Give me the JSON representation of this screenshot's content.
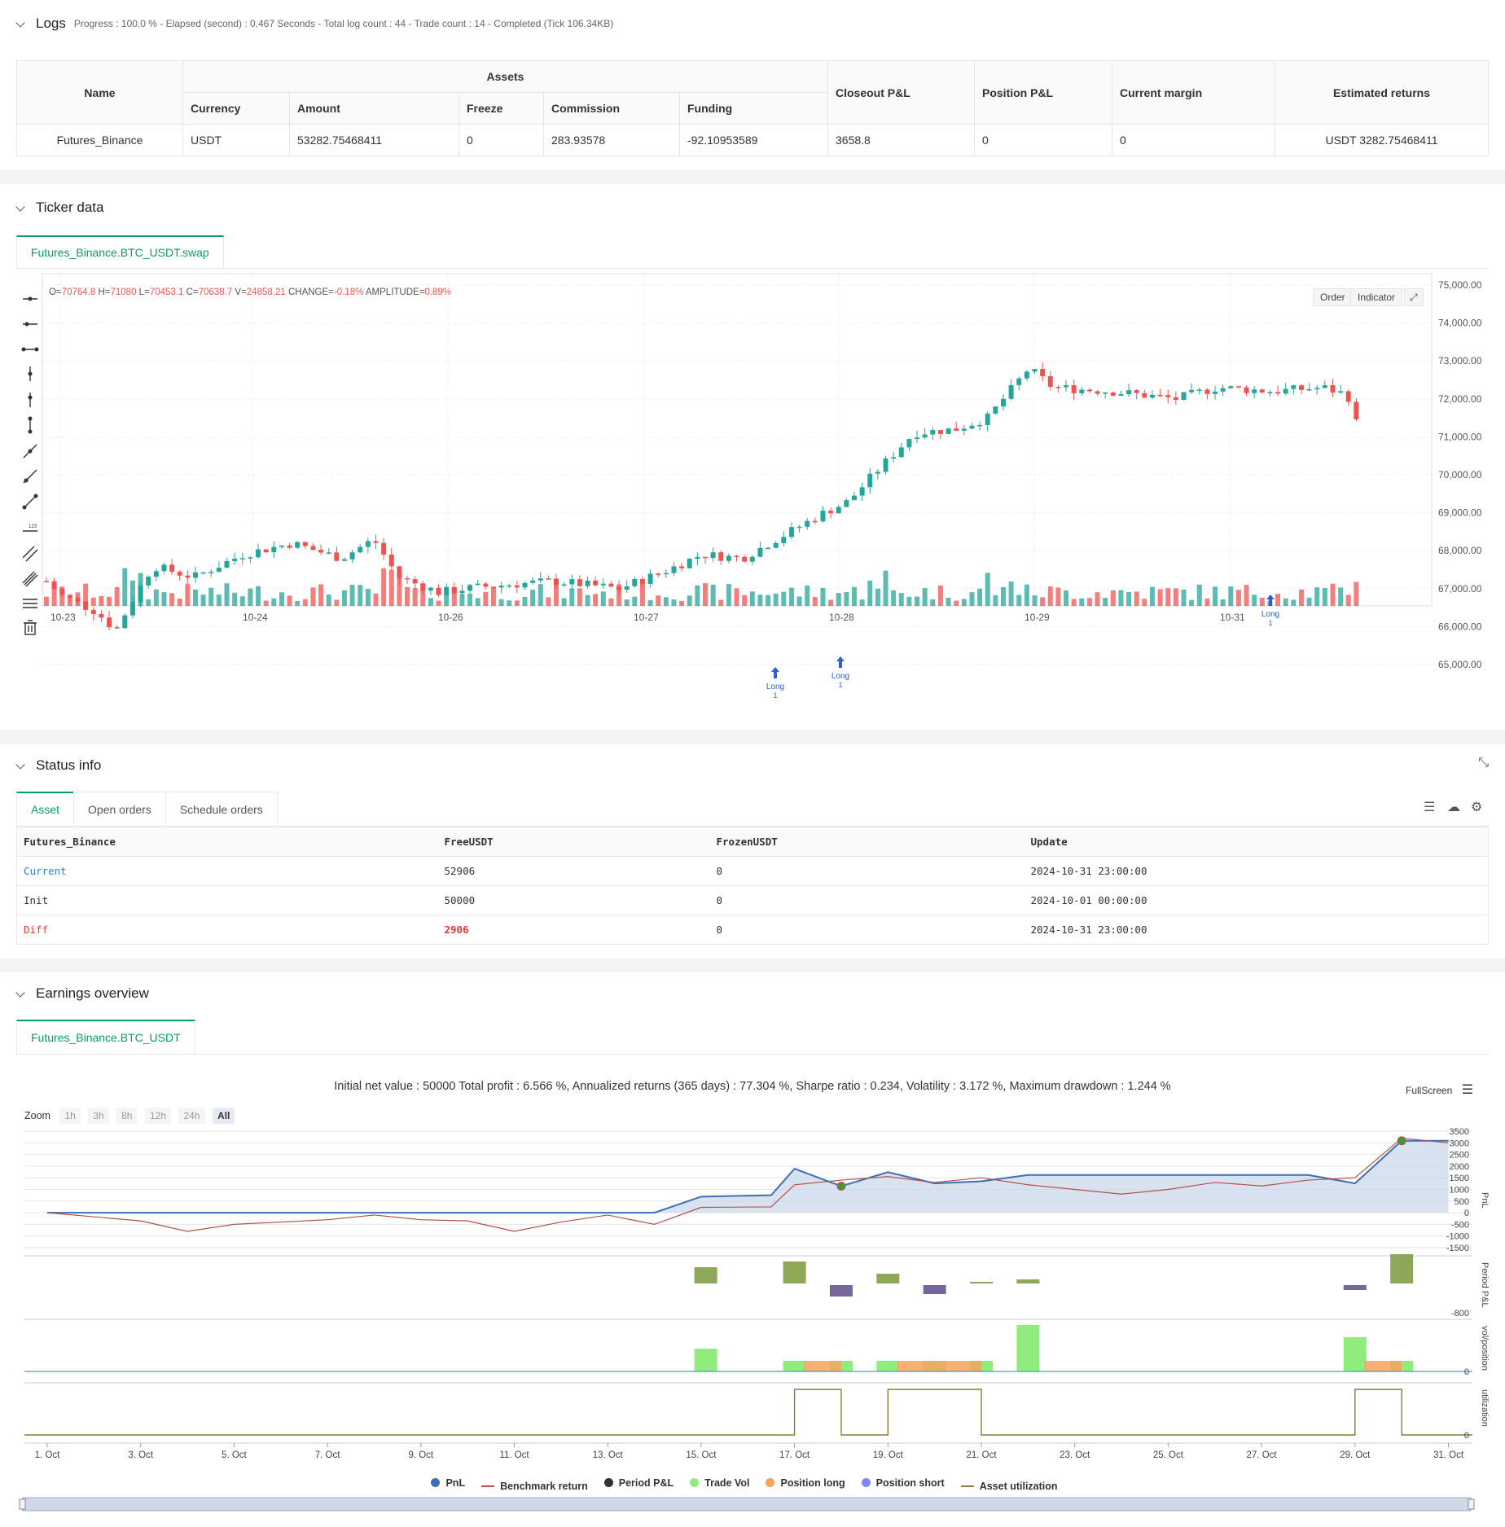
{
  "logs": {
    "title": "Logs",
    "meta": "Progress : 100.0 % - Elapsed (second) : 0.467  Seconds - Total log count : 44 - Trade count : 14 - Completed (Tick 106.34KB)",
    "headers": {
      "name": "Name",
      "assets": "Assets",
      "currency": "Currency",
      "amount": "Amount",
      "freeze": "Freeze",
      "commission": "Commission",
      "funding": "Funding",
      "closeout": "Closeout P&L",
      "position": "Position P&L",
      "margin": "Current margin",
      "returns": "Estimated returns"
    },
    "row": {
      "name": "Futures_Binance",
      "currency": "USDT",
      "amount": "53282.75468411",
      "freeze": "0",
      "commission": "283.93578",
      "funding": "-92.10953589",
      "closeout": "3658.8",
      "position": "0",
      "margin": "0",
      "returns": "USDT 3282.75468411"
    }
  },
  "ticker": {
    "title": "Ticker data",
    "tab": "Futures_Binance.BTC_USDT.swap",
    "ohlc": {
      "o_label": "O=",
      "o": "70764.8",
      "h_label": "H=",
      "h": "71080",
      "l_label": "L=",
      "l": "70453.1",
      "c_label": "C=",
      "c": "70638.7",
      "v_label": "V=",
      "v": "24858.21",
      "change_label": "CHANGE=",
      "change": "-0.18%",
      "amp_label": "AMPLITUDE=",
      "amp": "0.89%"
    },
    "buttons": {
      "order": "Order",
      "indicator": "Indicator"
    },
    "y_ticks": [
      "75,000.00",
      "74,000.00",
      "73,000.00",
      "72,000.00",
      "71,000.00",
      "70,000.00",
      "69,000.00",
      "68,000.00",
      "67,000.00",
      "66,000.00",
      "65,000.00"
    ],
    "x_ticks": [
      "10-23",
      "10-24",
      "10-26",
      "10-27",
      "10-28",
      "10-29",
      "10-31"
    ],
    "markers": [
      {
        "label": "Long",
        "qty": "1"
      },
      {
        "label": "Long",
        "qty": "1"
      },
      {
        "label": "Long",
        "qty": "1"
      }
    ],
    "colors": {
      "up": "#26a69a",
      "down": "#ef5350"
    }
  },
  "status": {
    "title": "Status info",
    "tabs": [
      "Asset",
      "Open orders",
      "Schedule orders"
    ],
    "headers": [
      "Futures_Binance",
      "FreeUSDT",
      "FrozenUSDT",
      "Update"
    ],
    "rows": [
      {
        "label": "Current",
        "free": "52906",
        "frozen": "0",
        "update": "2024-10-31 23:00:00"
      },
      {
        "label": "Init",
        "free": "50000",
        "frozen": "0",
        "update": "2024-10-01 00:00:00"
      },
      {
        "label": "Diff",
        "free": "2906",
        "frozen": "0",
        "update": "2024-10-31 23:00:00"
      }
    ]
  },
  "earnings": {
    "title": "Earnings overview",
    "tab": "Futures_Binance.BTC_USDT",
    "summary": "Initial net value : 50000  Total profit : 6.566 %, Annualized returns (365 days) : 77.304 %, Sharpe ratio : 0.234, Volatility : 3.172 %, Maximum drawdown : 1.244 %",
    "fullscreen": "FullScreen",
    "zoom_label": "Zoom",
    "zoom_options": [
      "1h",
      "3h",
      "8h",
      "12h",
      "24h",
      "All"
    ],
    "pnl_ticks": [
      "3500",
      "3000",
      "2500",
      "2000",
      "1500",
      "1000",
      "500",
      "0",
      "-500",
      "-1000",
      "-1500"
    ],
    "pnl_axis": "PnL",
    "period_axis": "Period P&L",
    "period_tick": "-800",
    "vol_axis": "vol/position",
    "vol_tick": "0",
    "util_axis": "utilization",
    "util_tick": "0",
    "x_ticks": [
      "1. Oct",
      "3. Oct",
      "5. Oct",
      "7. Oct",
      "9. Oct",
      "11. Oct",
      "13. Oct",
      "15. Oct",
      "17. Oct",
      "19. Oct",
      "21. Oct",
      "23. Oct",
      "25. Oct",
      "27. Oct",
      "29. Oct",
      "31. Oct"
    ],
    "legend": [
      {
        "label": "PnL",
        "color": "#3b6fb6",
        "kind": "dot"
      },
      {
        "label": "Benchmark return",
        "color": "#b5504a",
        "kind": "line"
      },
      {
        "label": "Period P&L",
        "color": "#333333",
        "kind": "dot"
      },
      {
        "label": "Trade Vol",
        "color": "#90ed7d",
        "kind": "dot"
      },
      {
        "label": "Position long",
        "color": "#f7a35c",
        "kind": "dot"
      },
      {
        "label": "Position short",
        "color": "#8085e9",
        "kind": "dot"
      },
      {
        "label": "Asset utilization",
        "color": "#8d7a3a",
        "kind": "line"
      }
    ]
  }
}
